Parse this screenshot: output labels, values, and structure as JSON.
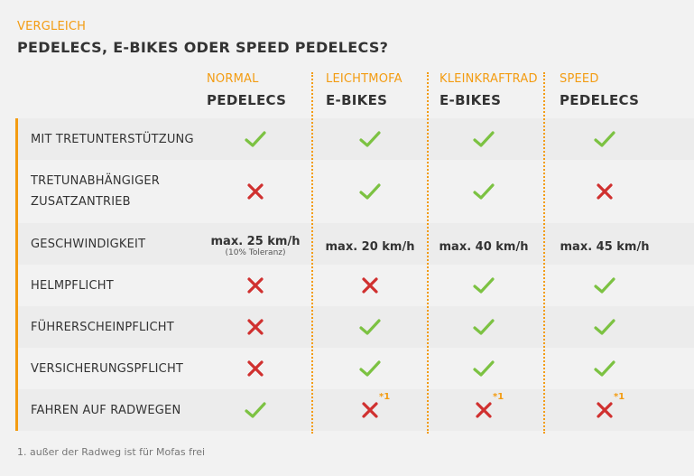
{
  "header": {
    "eyebrow": "VERGLEICH",
    "title": "PEDELECS, E-BIKES ODER SPEED PEDELECS?"
  },
  "columns": [
    {
      "sub": "NORMAL",
      "main": "PEDELECS"
    },
    {
      "sub": "LEICHTMOFA",
      "main": "E-BIKES"
    },
    {
      "sub": "KLEINKRAFTRAD",
      "main": "E-BIKES"
    },
    {
      "sub": "SPEED",
      "main": "PEDELECS"
    }
  ],
  "rows": [
    {
      "label": "MIT TRETUNTERSTÜTZUNG",
      "cells": [
        "check",
        "check",
        "check",
        "check"
      ]
    },
    {
      "label": "TRETUNABHÄNGIGER ZUSATZANTRIEB",
      "label_line1": "TRETUNABHÄNGIGER",
      "label_line2": "ZUSATZANTRIEB",
      "cells": [
        "cross",
        "check",
        "check",
        "cross"
      ]
    },
    {
      "label": "GESCHWINDIGKEIT",
      "cells": [
        "max. 25 km/h",
        "max. 20 km/h",
        "max. 40 km/h",
        "max. 45 km/h"
      ],
      "note0": "(10% Toleranz)"
    },
    {
      "label": "HELMPFLICHT",
      "cells": [
        "cross",
        "cross",
        "check",
        "check"
      ]
    },
    {
      "label": "FÜHRERSCHEINPFLICHT",
      "cells": [
        "cross",
        "check",
        "check",
        "check"
      ]
    },
    {
      "label": "VERSICHERUNGSPFLICHT",
      "cells": [
        "cross",
        "check",
        "check",
        "check"
      ]
    },
    {
      "label": "FAHREN AUF RADWEGEN",
      "cells": [
        "check",
        "cross",
        "cross",
        "cross"
      ],
      "footnote_mark": "*1"
    }
  ],
  "colors": {
    "accent": "#f39c12",
    "check": "#7cc242",
    "cross": "#d0302f"
  },
  "footnote": "1. außer der Radweg ist für Mofas frei"
}
